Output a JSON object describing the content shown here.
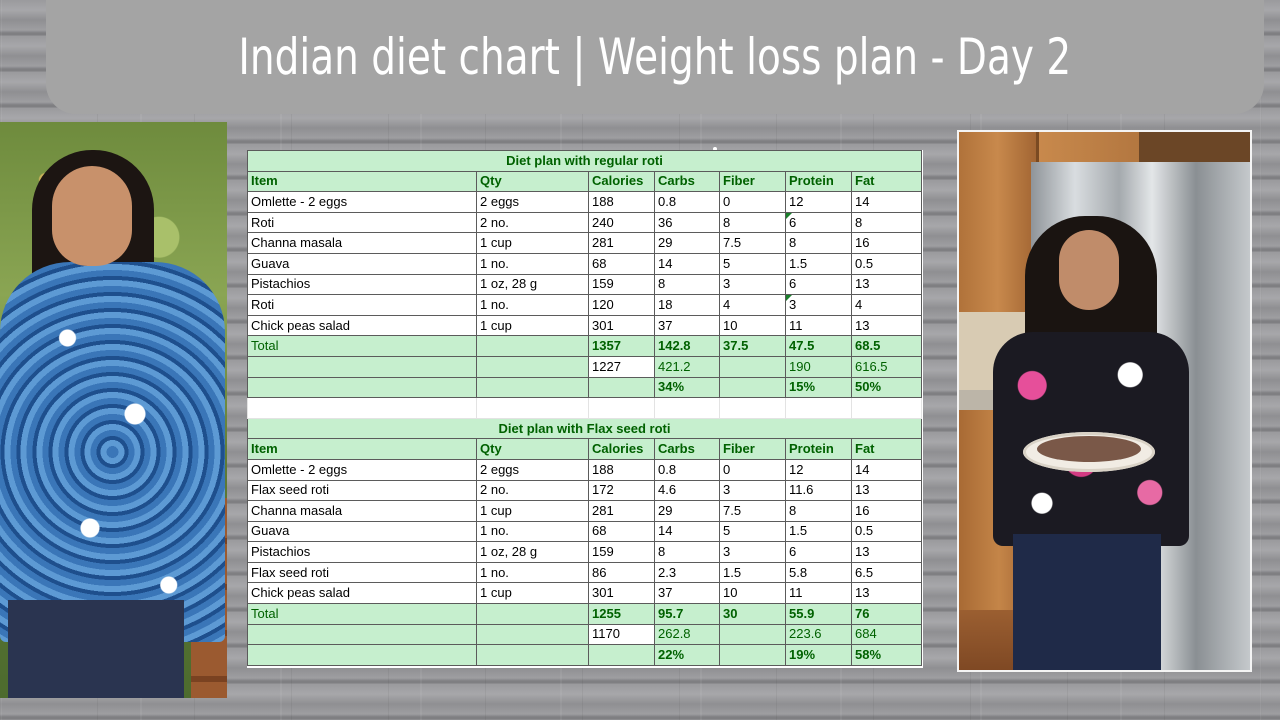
{
  "title": "Indian diet chart | Weight loss plan - Day 2",
  "columns": [
    "Item",
    "Qty",
    "Calories",
    "Carbs",
    "Fiber",
    "Protein",
    "Fat"
  ],
  "regular": {
    "heading": "Diet plan with regular roti",
    "rows": [
      [
        "Omlette - 2 eggs",
        "2 eggs",
        "188",
        "0.8",
        "0",
        "12",
        "14"
      ],
      [
        "Roti",
        "2 no.",
        "240",
        "36",
        "8",
        "6",
        "8"
      ],
      [
        "Channa masala",
        "1 cup",
        "281",
        "29",
        "7.5",
        "8",
        "16"
      ],
      [
        "Guava",
        "1 no.",
        "68",
        "14",
        "5",
        "1.5",
        "0.5"
      ],
      [
        "Pistachios",
        "1 oz, 28 g",
        "159",
        "8",
        "3",
        "6",
        "13"
      ],
      [
        "Roti",
        "1 no.",
        "120",
        "18",
        "4",
        "3",
        "4"
      ],
      [
        "Chick peas salad",
        "1 cup",
        "301",
        "37",
        "10",
        "11",
        "13"
      ]
    ],
    "total": [
      "Total",
      "",
      "1357",
      "142.8",
      "37.5",
      "47.5",
      "68.5"
    ],
    "calc": [
      "",
      "",
      "1227",
      "421.2",
      "",
      "190",
      "616.5"
    ],
    "percent": [
      "",
      "",
      "",
      "34%",
      "",
      "15%",
      "50%"
    ]
  },
  "flax": {
    "heading": "Diet plan with Flax seed roti",
    "rows": [
      [
        "Omlette - 2 eggs",
        "2 eggs",
        "188",
        "0.8",
        "0",
        "12",
        "14"
      ],
      [
        "Flax seed roti",
        "2 no.",
        "172",
        "4.6",
        "3",
        "11.6",
        "13"
      ],
      [
        "Channa masala",
        "1 cup",
        "281",
        "29",
        "7.5",
        "8",
        "16"
      ],
      [
        "Guava",
        "1 no.",
        "68",
        "14",
        "5",
        "1.5",
        "0.5"
      ],
      [
        "Pistachios",
        "1 oz, 28 g",
        "159",
        "8",
        "3",
        "6",
        "13"
      ],
      [
        "Flax seed roti",
        "1 no.",
        "86",
        "2.3",
        "1.5",
        "5.8",
        "6.5"
      ],
      [
        "Chick peas salad",
        "1 cup",
        "301",
        "37",
        "10",
        "11",
        "13"
      ]
    ],
    "total": [
      "Total",
      "",
      "1255",
      "95.7",
      "30",
      "55.9",
      "76"
    ],
    "calc": [
      "",
      "",
      "1170",
      "262.8",
      "",
      "223.6",
      "684"
    ],
    "percent": [
      "",
      "",
      "",
      "22%",
      "",
      "19%",
      "58%"
    ]
  }
}
